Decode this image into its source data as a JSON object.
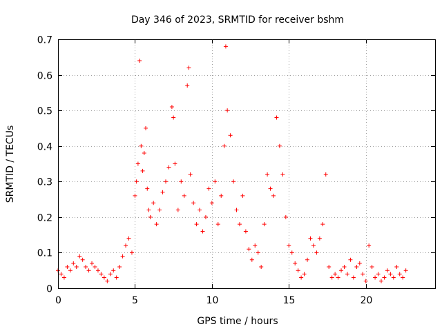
{
  "chart_data": {
    "type": "scatter",
    "title": "Day 346 of 2023, SRMTID for receiver bshm",
    "xlabel": "GPS time / hours",
    "ylabel": "SRMTID / TECUs",
    "xlim": [
      0,
      24.5
    ],
    "ylim": [
      0,
      0.7
    ],
    "xticks": [
      0,
      5,
      10,
      15,
      20
    ],
    "xtick_labels": [
      "0",
      "5",
      "10",
      "15",
      "20"
    ],
    "yticks": [
      0,
      0.1,
      0.2,
      0.3,
      0.4,
      0.5,
      0.6,
      0.7
    ],
    "ytick_labels": [
      "0",
      "0.1",
      "0.2",
      "0.3",
      "0.4",
      "0.5",
      "0.6",
      "0.7"
    ],
    "grid": true,
    "marker": "+",
    "series": [
      {
        "name": "SRMTID",
        "color": "#ff0000",
        "x": [
          0.0,
          0.2,
          0.4,
          0.6,
          0.8,
          1.0,
          1.2,
          1.4,
          1.6,
          1.8,
          2.0,
          2.2,
          2.4,
          2.6,
          2.8,
          3.0,
          3.2,
          3.4,
          3.6,
          3.8,
          4.0,
          4.2,
          4.4,
          4.6,
          4.8,
          5.0,
          5.1,
          5.2,
          5.3,
          5.4,
          5.5,
          5.6,
          5.7,
          5.8,
          5.9,
          6.0,
          6.2,
          6.4,
          6.6,
          6.8,
          7.0,
          7.2,
          7.4,
          7.5,
          7.6,
          7.8,
          8.0,
          8.2,
          8.4,
          8.5,
          8.6,
          8.8,
          9.0,
          9.2,
          9.4,
          9.6,
          9.8,
          10.0,
          10.2,
          10.4,
          10.6,
          10.8,
          10.9,
          11.0,
          11.2,
          11.4,
          11.6,
          11.8,
          12.0,
          12.2,
          12.4,
          12.6,
          12.8,
          13.0,
          13.2,
          13.4,
          13.6,
          13.8,
          14.0,
          14.2,
          14.4,
          14.6,
          14.8,
          15.0,
          15.2,
          15.4,
          15.6,
          15.8,
          16.0,
          16.2,
          16.4,
          16.6,
          16.8,
          17.0,
          17.2,
          17.4,
          17.6,
          17.8,
          18.0,
          18.2,
          18.4,
          18.6,
          18.8,
          19.0,
          19.2,
          19.4,
          19.6,
          19.8,
          20.0,
          20.2,
          20.4,
          20.6,
          20.8,
          21.0,
          21.2,
          21.4,
          21.6,
          21.8,
          22.0,
          22.2,
          22.4,
          22.6
        ],
        "y": [
          0.05,
          0.04,
          0.03,
          0.06,
          0.05,
          0.07,
          0.06,
          0.09,
          0.08,
          0.06,
          0.05,
          0.07,
          0.06,
          0.05,
          0.04,
          0.03,
          0.02,
          0.04,
          0.05,
          0.03,
          0.06,
          0.09,
          0.12,
          0.14,
          0.1,
          0.26,
          0.3,
          0.35,
          0.64,
          0.4,
          0.33,
          0.38,
          0.45,
          0.28,
          0.22,
          0.2,
          0.24,
          0.18,
          0.22,
          0.27,
          0.3,
          0.34,
          0.51,
          0.48,
          0.35,
          0.22,
          0.3,
          0.26,
          0.57,
          0.62,
          0.32,
          0.24,
          0.18,
          0.22,
          0.16,
          0.2,
          0.28,
          0.24,
          0.3,
          0.18,
          0.26,
          0.4,
          0.68,
          0.5,
          0.43,
          0.3,
          0.22,
          0.18,
          0.26,
          0.16,
          0.11,
          0.08,
          0.12,
          0.1,
          0.06,
          0.18,
          0.32,
          0.28,
          0.26,
          0.48,
          0.4,
          0.32,
          0.2,
          0.12,
          0.1,
          0.07,
          0.05,
          0.03,
          0.04,
          0.08,
          0.14,
          0.12,
          0.1,
          0.14,
          0.18,
          0.32,
          0.06,
          0.03,
          0.04,
          0.03,
          0.05,
          0.06,
          0.04,
          0.08,
          0.03,
          0.06,
          0.07,
          0.04,
          0.02,
          0.12,
          0.06,
          0.03,
          0.04,
          0.02,
          0.03,
          0.05,
          0.04,
          0.03,
          0.06,
          0.04,
          0.03,
          0.05
        ]
      }
    ]
  }
}
